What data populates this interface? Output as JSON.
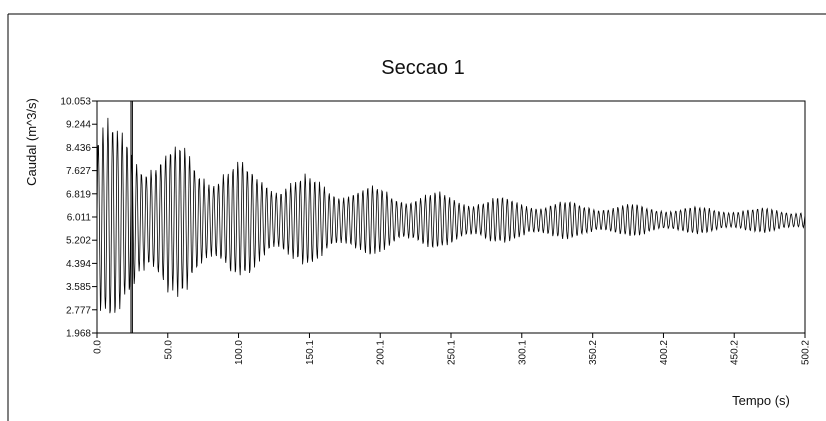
{
  "chart_data": {
    "type": "line",
    "title": "Seccao 1",
    "xlabel": "Tempo (s)",
    "ylabel": "Caudal (m^3/s)",
    "xlim": [
      0.0,
      500.2
    ],
    "ylim": [
      1.968,
      10.053
    ],
    "x_ticks": [
      "0.0",
      "50.0",
      "100.0",
      "150.1",
      "200.1",
      "250.1",
      "300.1",
      "350.2",
      "400.2",
      "450.2",
      "500.2"
    ],
    "y_ticks": [
      "10.053",
      "9.244",
      "8.436",
      "7.627",
      "6.819",
      "6.011",
      "5.202",
      "4.394",
      "3.585",
      "2.777",
      "1.968"
    ],
    "grid": false,
    "legend": "none",
    "series": [
      {
        "mean": 5.9,
        "initial_amplitude": 3.9,
        "final_amplitude": 0.3,
        "period_s": 3.4,
        "points_note_samples": [
          [
            0.0,
            9.3
          ],
          [
            2.0,
            2.3
          ],
          [
            5.0,
            9.8
          ],
          [
            8.0,
            2.2
          ],
          [
            12.0,
            9.5
          ],
          [
            20.0,
            9.4
          ],
          [
            24.0,
            10.05
          ],
          [
            25.0,
            1.97
          ],
          [
            40.0,
            9.5
          ],
          [
            50.0,
            2.6
          ],
          [
            100.0,
            8.0
          ],
          [
            150.1,
            7.6
          ],
          [
            200.1,
            7.2
          ],
          [
            250.1,
            6.8
          ],
          [
            300.1,
            6.5
          ],
          [
            350.2,
            6.3
          ],
          [
            400.2,
            6.2
          ],
          [
            450.2,
            6.1
          ],
          [
            500.2,
            6.0
          ]
        ]
      }
    ],
    "colors": {
      "line": "#000000",
      "axes": "#000000",
      "background": "#ffffff"
    }
  }
}
